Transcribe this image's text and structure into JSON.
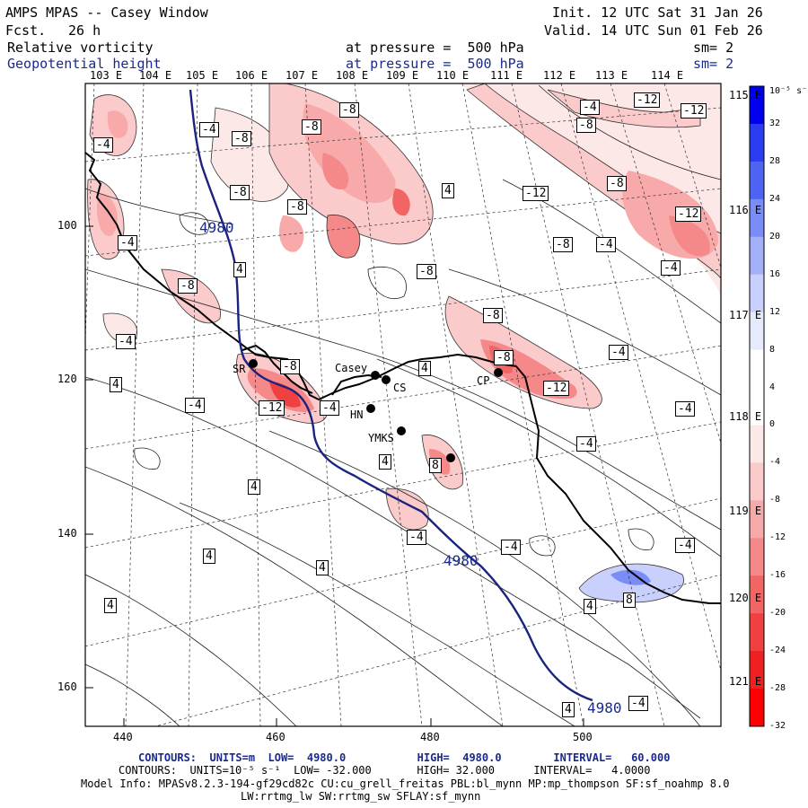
{
  "header": {
    "title": "AMPS MPAS -- Casey Window",
    "fcst_label": "Fcst.",
    "fcst_value": "26 h",
    "init": "Init. 12 UTC Sat 31 Jan 26",
    "valid": "Valid. 14 UTC Sun 01 Feb 26",
    "field1_name": "Relative vorticity",
    "field1_level": "at pressure =  500 hPa",
    "field1_sm": "sm= 2",
    "field2_name": "Geopotential height",
    "field2_level": "at pressure =  500 hPa",
    "field2_sm": "sm= 2"
  },
  "axes": {
    "lon_top": [
      "103 E",
      "104 E",
      "105 E",
      "106 E",
      "107 E",
      "108 E",
      "109 E",
      "110 E",
      "111 E",
      "112 E",
      "113 E",
      "114 E"
    ],
    "lon_right": [
      "115 E",
      "116 E",
      "117 E",
      "118 E",
      "119 E",
      "120 E",
      "121 E"
    ],
    "x_ticks": [
      "440",
      "460",
      "480",
      "500"
    ],
    "y_ticks": [
      "100",
      "120",
      "140",
      "160"
    ]
  },
  "stations": [
    "SR",
    "Casey",
    "CS",
    "HN",
    "YMKS",
    "CP"
  ],
  "contour_labels": {
    "vort": [
      "-4",
      "-8",
      "-12",
      "4",
      "8"
    ],
    "height": "4980"
  },
  "colorbar": {
    "unit": "10⁻⁵ s⁻¹",
    "ticks": [
      "32",
      "28",
      "24",
      "20",
      "16",
      "12",
      "8",
      "4",
      "0",
      "-4",
      "-8",
      "-12",
      "-16",
      "-20",
      "-24",
      "-28",
      "-32"
    ],
    "colors": [
      "#0000ee",
      "#2a3cf0",
      "#4f63f2",
      "#7a8cf5",
      "#a3b0f8",
      "#c8d0fb",
      "#e6eafd",
      "#ffffff",
      "#ffffff",
      "#fde8e8",
      "#fbcaca",
      "#f8a9a9",
      "#f58888",
      "#f26565",
      "#f04040",
      "#ee2020",
      "#ff0000"
    ]
  },
  "footer": {
    "line1": "CONTOURS:  UNITS=m  LOW=  4980.0           HIGH=  4980.0        INTERVAL=   60.000",
    "line2": "CONTOURS:  UNITS=10⁻⁵ s⁻¹  LOW= -32.000       HIGH= 32.000      INTERVAL=   4.0000",
    "line3": "Model Info: MPASv8.2.3-194-gf29cd82c CU:cu_grell_freitas PBL:bl_mynn MP:mp_thompson SF:sf_noahmp 8.0",
    "line4": "LW:rrtmg_lw SW:rrtmg_sw SFLAY:sf_mynn"
  }
}
